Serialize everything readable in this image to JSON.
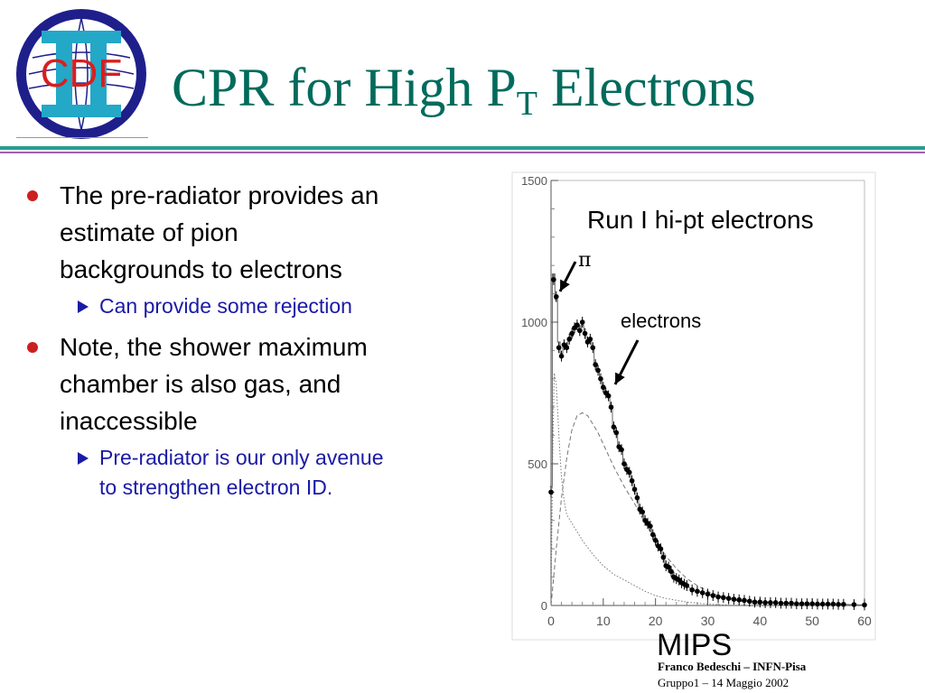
{
  "logo": {
    "text": "CDF"
  },
  "title": {
    "prefix": "CPR for High P",
    "subscript": "T",
    "suffix": " Electrons"
  },
  "bullets": [
    {
      "text": "The pre-radiator provides an estimate of pion backgrounds to electrons",
      "lines": [
        "The pre-radiator provides an",
        "estimate of pion",
        "backgrounds to electrons"
      ],
      "sub": {
        "lines": [
          "Can provide some rejection"
        ]
      }
    },
    {
      "text": "Note, the shower maximum chamber is also gas, and inaccessible",
      "lines": [
        "Note, the shower maximum",
        "chamber is also gas, and",
        "inaccessible"
      ],
      "sub": {
        "lines": [
          "Pre-radiator is our only avenue",
          "to strengthen electron ID."
        ]
      }
    }
  ],
  "colors": {
    "title": "#006b5c",
    "bullet_dot": "#cc1f1f",
    "sub_text": "#1a1aa6",
    "rule_teal": "#2a9d8f",
    "rule_purple": "#a05fb0"
  },
  "chart_data": {
    "type": "scatter",
    "title": "Run I hi-pt electrons",
    "xlabel": "MIPS",
    "ylabel": "",
    "xlim": [
      0,
      60
    ],
    "ylim": [
      0,
      1500
    ],
    "x_ticks": [
      0,
      10,
      20,
      30,
      40,
      50,
      60
    ],
    "y_ticks": [
      0,
      500,
      1000,
      1500
    ],
    "annotations": [
      "π",
      "electrons"
    ],
    "series": [
      {
        "style": "points",
        "x": [
          0,
          0.5,
          1,
          1.5,
          2,
          2.5,
          3,
          3.5,
          4,
          4.5,
          5,
          5.5,
          6,
          6.5,
          7,
          7.5,
          8,
          8.5,
          9,
          9.5,
          10,
          10.5,
          11,
          11.5,
          12,
          12.5,
          13,
          13.5,
          14,
          14.5,
          15,
          15.5,
          16,
          16.5,
          17,
          17.5,
          18,
          18.5,
          19,
          19.5,
          20,
          20.5,
          21,
          21.5,
          22,
          22.5,
          23,
          23.5,
          24,
          24.5,
          25,
          25.5,
          26,
          27,
          28,
          29,
          30,
          31,
          32,
          33,
          34,
          35,
          36,
          37,
          38,
          39,
          40,
          41,
          42,
          43,
          44,
          45,
          46,
          47,
          48,
          49,
          50,
          51,
          52,
          53,
          54,
          55,
          56,
          58,
          60
        ],
        "y": [
          400,
          1150,
          1090,
          910,
          880,
          920,
          910,
          940,
          960,
          980,
          990,
          970,
          1000,
          960,
          930,
          940,
          910,
          850,
          830,
          800,
          770,
          750,
          740,
          700,
          630,
          610,
          560,
          550,
          500,
          480,
          470,
          440,
          410,
          380,
          340,
          330,
          300,
          290,
          280,
          250,
          230,
          210,
          200,
          170,
          140,
          135,
          120,
          100,
          95,
          90,
          80,
          75,
          70,
          55,
          50,
          45,
          40,
          35,
          30,
          28,
          25,
          22,
          20,
          18,
          15,
          12,
          12,
          10,
          10,
          10,
          8,
          8,
          8,
          6,
          6,
          6,
          6,
          5,
          5,
          5,
          5,
          4,
          4,
          3,
          2
        ]
      },
      {
        "style": "histogram",
        "x": [
          0,
          0.5,
          1,
          1.5,
          2,
          2.5,
          3,
          3.5,
          4,
          4.5,
          5,
          5.5,
          6,
          6.5,
          7,
          7.5,
          8,
          8.5,
          9,
          9.5,
          10,
          10.5,
          11,
          11.5,
          12,
          12.5,
          13,
          13.5,
          14,
          14.5,
          15,
          15.5,
          16,
          16.5,
          17,
          17.5,
          18,
          18.5,
          19,
          19.5,
          20,
          20.5,
          21,
          21.5,
          22,
          22.5,
          23,
          23.5,
          24,
          24.5,
          25,
          25.5,
          26,
          27,
          28,
          29,
          30,
          31,
          32,
          33,
          34,
          35,
          36,
          37,
          38,
          39,
          40,
          41,
          42,
          43,
          44,
          45,
          46,
          47,
          48,
          49,
          50,
          51,
          52,
          53,
          54,
          55,
          56,
          58,
          60
        ],
        "y": [
          420,
          1170,
          1080,
          930,
          890,
          910,
          920,
          935,
          950,
          975,
          985,
          975,
          990,
          965,
          935,
          935,
          905,
          855,
          835,
          805,
          775,
          755,
          735,
          705,
          635,
          615,
          565,
          545,
          505,
          485,
          465,
          445,
          405,
          385,
          345,
          325,
          305,
          285,
          275,
          255,
          225,
          215,
          195,
          175,
          145,
          130,
          120,
          105,
          95,
          88,
          82,
          75,
          68,
          57,
          50,
          44,
          40,
          35,
          31,
          28,
          24,
          21,
          19,
          17,
          15,
          13,
          12,
          11,
          10,
          9,
          8,
          8,
          7,
          6,
          6,
          6,
          5,
          5,
          5,
          5,
          4,
          4,
          4,
          3,
          2
        ]
      },
      {
        "style": "dashed",
        "x": [
          0,
          1,
          2,
          3,
          4,
          5,
          6,
          7,
          8,
          9,
          10,
          12,
          14,
          16,
          18,
          20,
          22,
          24,
          26,
          28,
          30,
          32,
          34,
          36,
          38,
          40
        ],
        "y": [
          0,
          200,
          380,
          520,
          620,
          670,
          680,
          670,
          640,
          610,
          570,
          490,
          420,
          360,
          290,
          230,
          175,
          130,
          95,
          70,
          50,
          35,
          25,
          15,
          10,
          5
        ]
      },
      {
        "style": "dotted",
        "x": [
          0,
          0.3,
          0.6,
          1,
          1.5,
          2,
          2.5,
          3,
          4,
          5,
          6,
          8,
          10,
          12,
          14,
          16,
          18,
          20,
          22,
          24,
          26,
          28,
          30,
          32,
          34
        ],
        "y": [
          0,
          500,
          820,
          780,
          600,
          450,
          370,
          320,
          290,
          260,
          230,
          180,
          140,
          110,
          90,
          70,
          50,
          35,
          25,
          18,
          12,
          8,
          5,
          3,
          2
        ]
      }
    ]
  },
  "footer": {
    "author": "Franco Bedeschi – INFN-Pisa",
    "date": "Gruppo1 – 14 Maggio 2002"
  }
}
